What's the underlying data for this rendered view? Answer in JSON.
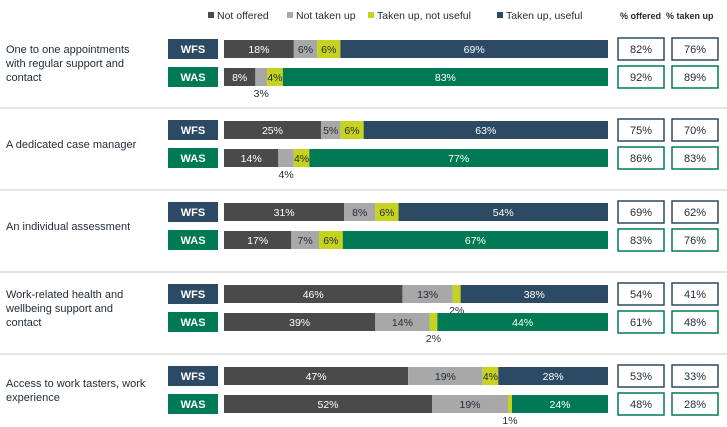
{
  "colors": {
    "not_offered": "#4a4a4a",
    "not_taken_up": "#a8a8a8",
    "taken_up_not_useful": "#c6d21e",
    "wfs_useful": "#2c4a63",
    "was_useful": "#007a55",
    "wfs_label_bg": "#2c4a63",
    "was_label_bg": "#007a55",
    "divider": "#c9c9c9",
    "text": "#1f2a36"
  },
  "stat_headers": {
    "offered": "% offered",
    "taken_up": "% taken up"
  },
  "chart_data": {
    "type": "bar",
    "orientation": "horizontal",
    "stacked": true,
    "xlim": [
      0,
      100
    ],
    "legend": {
      "placement": "top",
      "entries": [
        "Not offered",
        "Not taken up",
        "Taken up, not useful",
        "Taken up, useful"
      ]
    },
    "segment_keys": [
      "not_offered",
      "not_taken_up",
      "taken_up_not_useful",
      "taken_up_useful"
    ],
    "categories": [
      {
        "label_lines": [
          "One to one appointments",
          "with regular support and",
          "contact"
        ],
        "rows": [
          {
            "programme": "WFS",
            "values": [
              18,
              6,
              6,
              69
            ],
            "labels": [
              "18%",
              "6%",
              "6%",
              "69%"
            ],
            "below_label": "",
            "offered": "82%",
            "taken_up": "76%"
          },
          {
            "programme": "WAS",
            "values": [
              8,
              3,
              4,
              83
            ],
            "labels": [
              "8%",
              "",
              "4%",
              "83%"
            ],
            "below_label": "3%",
            "offered": "92%",
            "taken_up": "89%"
          }
        ]
      },
      {
        "label_lines": [
          "A dedicated case manager"
        ],
        "rows": [
          {
            "programme": "WFS",
            "values": [
              25,
              5,
              6,
              63
            ],
            "labels": [
              "25%",
              "5%",
              "6%",
              "63%"
            ],
            "below_label": "",
            "offered": "75%",
            "taken_up": "70%"
          },
          {
            "programme": "WAS",
            "values": [
              14,
              4,
              4,
              77
            ],
            "labels": [
              "14%",
              "",
              "4%",
              "77%"
            ],
            "below_label": "4%",
            "offered": "86%",
            "taken_up": "83%"
          }
        ]
      },
      {
        "label_lines": [
          "An individual assessment"
        ],
        "rows": [
          {
            "programme": "WFS",
            "values": [
              31,
              8,
              6,
              54
            ],
            "labels": [
              "31%",
              "8%",
              "6%",
              "54%"
            ],
            "below_label": "",
            "offered": "69%",
            "taken_up": "62%"
          },
          {
            "programme": "WAS",
            "values": [
              17,
              7,
              6,
              67
            ],
            "labels": [
              "17%",
              "7%",
              "6%",
              "67%"
            ],
            "below_label": "",
            "offered": "83%",
            "taken_up": "76%"
          }
        ]
      },
      {
        "label_lines": [
          "Work-related health and",
          "wellbeing support and",
          "contact"
        ],
        "rows": [
          {
            "programme": "WFS",
            "values": [
              46,
              13,
              2,
              38
            ],
            "labels": [
              "46%",
              "13%",
              "",
              "38%"
            ],
            "below_label": "2%",
            "offered": "54%",
            "taken_up": "41%"
          },
          {
            "programme": "WAS",
            "values": [
              39,
              14,
              2,
              44
            ],
            "labels": [
              "39%",
              "14%",
              "",
              "44%"
            ],
            "below_label": "2%",
            "offered": "61%",
            "taken_up": "48%"
          }
        ]
      },
      {
        "label_lines": [
          "Access to work tasters, work",
          "experience"
        ],
        "rows": [
          {
            "programme": "WFS",
            "values": [
              47,
              19,
              4,
              28
            ],
            "labels": [
              "47%",
              "19%",
              "4%",
              "28%"
            ],
            "below_label": "",
            "offered": "53%",
            "taken_up": "33%"
          },
          {
            "programme": "WAS",
            "values": [
              52,
              19,
              1,
              24
            ],
            "labels": [
              "52%",
              "19%",
              "",
              "24%"
            ],
            "below_label": "1%",
            "offered": "48%",
            "taken_up": "28%"
          }
        ]
      }
    ]
  }
}
